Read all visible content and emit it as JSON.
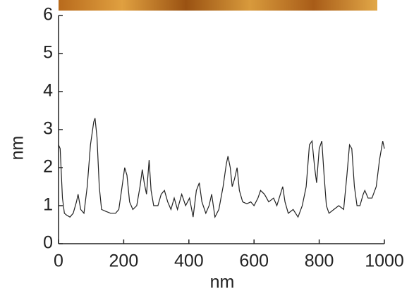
{
  "chart_data": {
    "type": "line",
    "x_label": "nm",
    "y_label": "nm",
    "xlim": [
      0,
      1000
    ],
    "xticks": [
      0,
      200,
      400,
      600,
      800,
      1000
    ],
    "ylim": [
      0,
      6
    ],
    "yticks": [
      0,
      1,
      2,
      3,
      4,
      5,
      6
    ],
    "series": [
      {
        "color": "#222222",
        "x": [
          0,
          5,
          12,
          18,
          25,
          35,
          45,
          55,
          60,
          68,
          78,
          88,
          98,
          108,
          112,
          118,
          125,
          132,
          145,
          160,
          175,
          185,
          195,
          203,
          210,
          218,
          228,
          240,
          250,
          257,
          263,
          270,
          278,
          284,
          292,
          305,
          315,
          325,
          335,
          345,
          355,
          365,
          378,
          390,
          402,
          413,
          423,
          432,
          440,
          452,
          462,
          470,
          480,
          492,
          505,
          515,
          520,
          527,
          533,
          540,
          548,
          555,
          565,
          578,
          590,
          600,
          612,
          620,
          632,
          645,
          660,
          670,
          688,
          695,
          705,
          720,
          735,
          748,
          760,
          770,
          778,
          786,
          792,
          800,
          808,
          815,
          822,
          830,
          845,
          860,
          875,
          885,
          893,
          900,
          908,
          916,
          925,
          935,
          940,
          950,
          962,
          975,
          985,
          995,
          1000
        ],
        "values": [
          2.6,
          2.5,
          1.2,
          0.8,
          0.75,
          0.7,
          0.8,
          1.1,
          1.3,
          0.9,
          0.8,
          1.5,
          2.6,
          3.2,
          3.3,
          2.8,
          1.5,
          0.9,
          0.85,
          0.8,
          0.8,
          0.9,
          1.5,
          2.0,
          1.8,
          1.1,
          0.9,
          1.0,
          1.5,
          1.95,
          1.6,
          1.3,
          2.2,
          1.4,
          1.0,
          1.0,
          1.3,
          1.4,
          1.1,
          0.9,
          1.2,
          0.9,
          1.3,
          1.0,
          1.2,
          0.7,
          1.4,
          1.6,
          1.1,
          0.8,
          1.0,
          1.3,
          0.7,
          0.9,
          1.5,
          2.1,
          2.3,
          2.0,
          1.5,
          1.7,
          2.0,
          1.4,
          1.1,
          1.05,
          1.1,
          1.0,
          1.2,
          1.4,
          1.3,
          1.1,
          1.2,
          1.0,
          1.5,
          1.1,
          0.8,
          0.9,
          0.7,
          1.0,
          1.5,
          2.6,
          2.7,
          2.0,
          1.6,
          2.5,
          2.7,
          1.8,
          1.0,
          0.8,
          0.9,
          1.0,
          0.9,
          1.8,
          2.6,
          2.5,
          1.5,
          1.0,
          1.0,
          1.3,
          1.4,
          1.2,
          1.2,
          1.5,
          2.2,
          2.7,
          2.5
        ]
      }
    ]
  }
}
